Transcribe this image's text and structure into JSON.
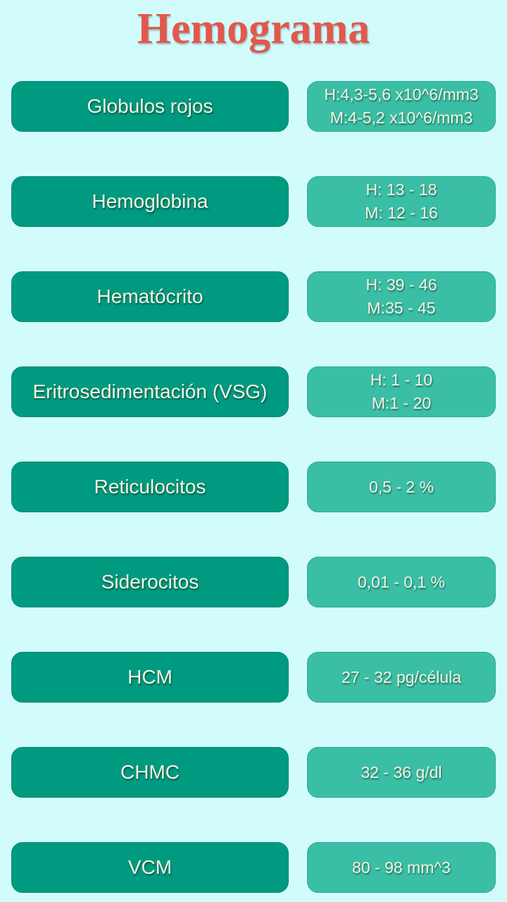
{
  "title": "Hemograma",
  "colors": {
    "background": "#d2fcfc",
    "title": "#e2584d",
    "name_button": "#009a80",
    "value_box": "#3abfa6",
    "text": "#f4f3df"
  },
  "rows": [
    {
      "name": "Globulos rojos",
      "value": [
        "H:4,3-5,6 x10^6/mm3",
        "M:4-5,2 x10^6/mm3"
      ]
    },
    {
      "name": "Hemoglobina",
      "value": [
        "H: 13 - 18",
        "M: 12 - 16"
      ]
    },
    {
      "name": "Hematócrito",
      "value": [
        "H: 39 - 46",
        "M:35 - 45"
      ]
    },
    {
      "name": "Eritrosedimentación (VSG)",
      "value": [
        "H: 1 - 10",
        "M:1 - 20"
      ]
    },
    {
      "name": "Reticulocitos",
      "value": [
        "0,5 - 2 %"
      ]
    },
    {
      "name": "Siderocitos",
      "value": [
        "0,01 - 0,1 %"
      ]
    },
    {
      "name": "HCM",
      "value": [
        "27 - 32 pg/célula"
      ]
    },
    {
      "name": "CHMC",
      "value": [
        "32 - 36 g/dl"
      ]
    },
    {
      "name": "VCM",
      "value": [
        "80 - 98 mm^3"
      ]
    }
  ]
}
